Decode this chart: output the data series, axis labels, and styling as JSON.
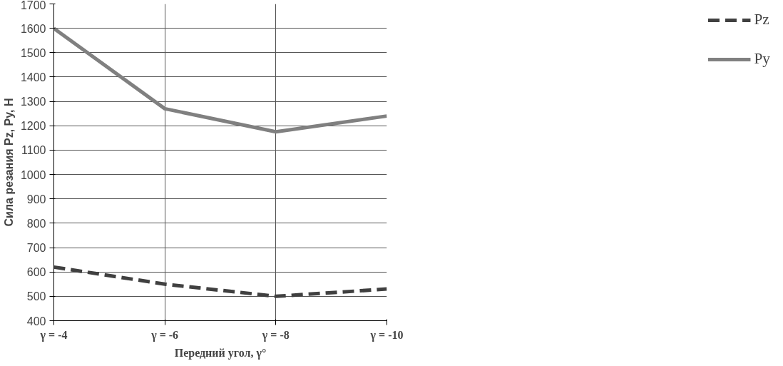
{
  "chart_data": {
    "type": "line",
    "xlabel": "Передний угол, γ°",
    "ylabel": "Сила резания Pz, Py, Н",
    "categories": [
      "γ = -4",
      "γ = -6",
      "γ = -8",
      "γ = -10"
    ],
    "ylim": [
      400,
      1700
    ],
    "yticks": [
      400,
      500,
      600,
      700,
      800,
      900,
      1000,
      1100,
      1200,
      1300,
      1400,
      1500,
      1600,
      1700
    ],
    "grid": true,
    "legend": "right",
    "marker": "none",
    "series": [
      {
        "name": "Pz",
        "color": "#404040",
        "line_style": "dashed",
        "values": [
          620,
          550,
          500,
          530
        ]
      },
      {
        "name": "Py",
        "color": "#808080",
        "line_style": "solid",
        "values": [
          1600,
          1270,
          1175,
          1240
        ]
      }
    ]
  }
}
